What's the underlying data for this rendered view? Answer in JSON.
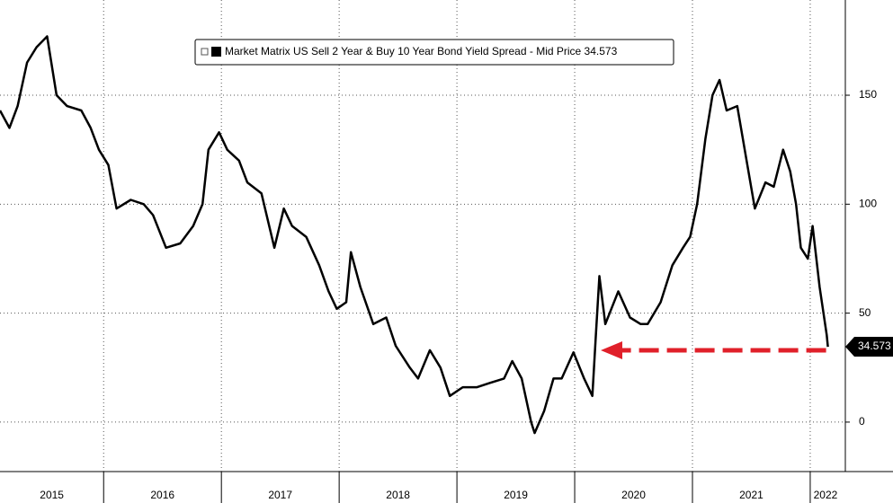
{
  "chart_data": {
    "type": "line",
    "series": [
      {
        "name": "Market Matrix US Sell 2 Year & Buy 10 Year Bond Yield Spread - Mid Price 34.573",
        "color": "#000000",
        "x": [
          2015.12,
          2015.2,
          2015.27,
          2015.35,
          2015.43,
          2015.52,
          2015.6,
          2015.69,
          2015.81,
          2015.89,
          2015.96,
          2016.04,
          2016.11,
          2016.23,
          2016.34,
          2016.42,
          2016.53,
          2016.65,
          2016.76,
          2016.84,
          2016.89,
          2016.98,
          2017.05,
          2017.15,
          2017.22,
          2017.34,
          2017.45,
          2017.53,
          2017.6,
          2017.72,
          2017.83,
          2017.91,
          2017.98,
          2018.06,
          2018.1,
          2018.18,
          2018.29,
          2018.4,
          2018.48,
          2018.6,
          2018.67,
          2018.77,
          2018.86,
          2018.94,
          2019.05,
          2019.17,
          2019.28,
          2019.4,
          2019.47,
          2019.55,
          2019.63,
          2019.66,
          2019.74,
          2019.82,
          2019.89,
          2019.99,
          2020.08,
          2020.15,
          2020.18,
          2020.21,
          2020.26,
          2020.37,
          2020.47,
          2020.56,
          2020.62,
          2020.73,
          2020.83,
          2020.92,
          2020.98,
          2021.04,
          2021.11,
          2021.17,
          2021.23,
          2021.29,
          2021.38,
          2021.46,
          2021.53,
          2021.62,
          2021.69,
          2021.77,
          2021.83,
          2021.88,
          2021.92,
          2021.98,
          2022.02,
          2022.08,
          2022.14,
          2022.15
        ],
        "values": [
          143,
          135,
          145,
          165,
          172,
          177,
          150,
          145,
          143,
          135,
          125,
          118,
          98,
          102,
          100,
          95,
          80,
          82,
          90,
          100,
          125,
          133,
          125,
          120,
          110,
          105,
          80,
          98,
          90,
          85,
          72,
          60,
          52,
          55,
          78,
          62,
          45,
          48,
          35,
          25,
          20,
          33,
          25,
          12,
          16,
          16,
          18,
          20,
          28,
          20,
          0,
          -5,
          5,
          20,
          20,
          32,
          20,
          12,
          40,
          67,
          45,
          60,
          48,
          45,
          45,
          55,
          72,
          80,
          85,
          100,
          130,
          150,
          157,
          143,
          145,
          120,
          98,
          110,
          108,
          125,
          115,
          100,
          80,
          75,
          90,
          62,
          40,
          34.573
        ]
      }
    ],
    "xlim": [
      2015.12,
      2022.26
    ],
    "xticks": [
      {
        "value": 2015,
        "label": "2015"
      },
      {
        "value": 2016,
        "label": "2016"
      },
      {
        "value": 2017,
        "label": "2017"
      },
      {
        "value": 2018,
        "label": "2018"
      },
      {
        "value": 2019,
        "label": "2019"
      },
      {
        "value": 2020,
        "label": "2020"
      },
      {
        "value": 2021,
        "label": "2021"
      },
      {
        "value": 2022,
        "label": "2022"
      }
    ],
    "ylim": [
      -22.7,
      193.7
    ],
    "yticks": [
      0,
      50,
      100,
      150
    ],
    "grid": true
  }
}
